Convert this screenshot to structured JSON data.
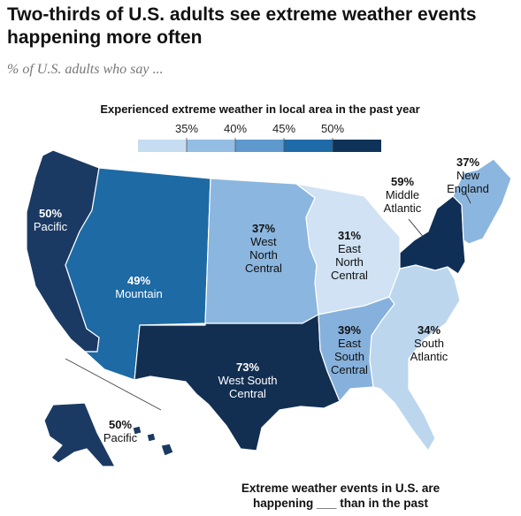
{
  "title": "Two-thirds of U.S. adults see extreme weather events happening more often",
  "subtitle": "% of U.S. adults who say ...",
  "legend": {
    "title": "Experienced extreme weather in local area in the past year",
    "ticks": [
      "35%",
      "40%",
      "45%",
      "50%"
    ],
    "colors": [
      "#c6dcf0",
      "#93bde3",
      "#5e98cd",
      "#1f6aa8",
      "#0f3358"
    ]
  },
  "footnote": "Extreme weather events in U.S. are happening ___ than in the past",
  "regions": [
    {
      "id": "pacific",
      "pct": "50%",
      "name_lines": [
        "Pacific"
      ],
      "value": 50,
      "color": "#1b3a63"
    },
    {
      "id": "mountain",
      "pct": "49%",
      "name_lines": [
        "Mountain"
      ],
      "value": 49,
      "color": "#1d6aa5"
    },
    {
      "id": "west-north-central",
      "pct": "37%",
      "name_lines": [
        "West",
        "North",
        "Central"
      ],
      "value": 37,
      "color": "#8bb6df"
    },
    {
      "id": "east-north-central",
      "pct": "31%",
      "name_lines": [
        "East",
        "North",
        "Central"
      ],
      "value": 31,
      "color": "#d0e2f3"
    },
    {
      "id": "middle-atlantic",
      "pct": "59%",
      "name_lines": [
        "Middle",
        "Atlantic"
      ],
      "value": 59,
      "color": "#0f2f57"
    },
    {
      "id": "new-england",
      "pct": "37%",
      "name_lines": [
        "New",
        "England"
      ],
      "value": 37,
      "color": "#8bb6df"
    },
    {
      "id": "south-atlantic",
      "pct": "34%",
      "name_lines": [
        "South",
        "Atlantic"
      ],
      "value": 34,
      "color": "#bcd6ee"
    },
    {
      "id": "east-south-central",
      "pct": "39%",
      "name_lines": [
        "East",
        "South",
        "Central"
      ],
      "value": 39,
      "color": "#86b1dc"
    },
    {
      "id": "west-south-central",
      "pct": "73%",
      "name_lines": [
        "West South",
        "Central"
      ],
      "value": 73,
      "color": "#122f52"
    },
    {
      "id": "pacific-ak-hi",
      "pct": "50%",
      "name_lines": [
        "Pacific"
      ],
      "value": 50,
      "color": "#1b3a63"
    }
  ]
}
